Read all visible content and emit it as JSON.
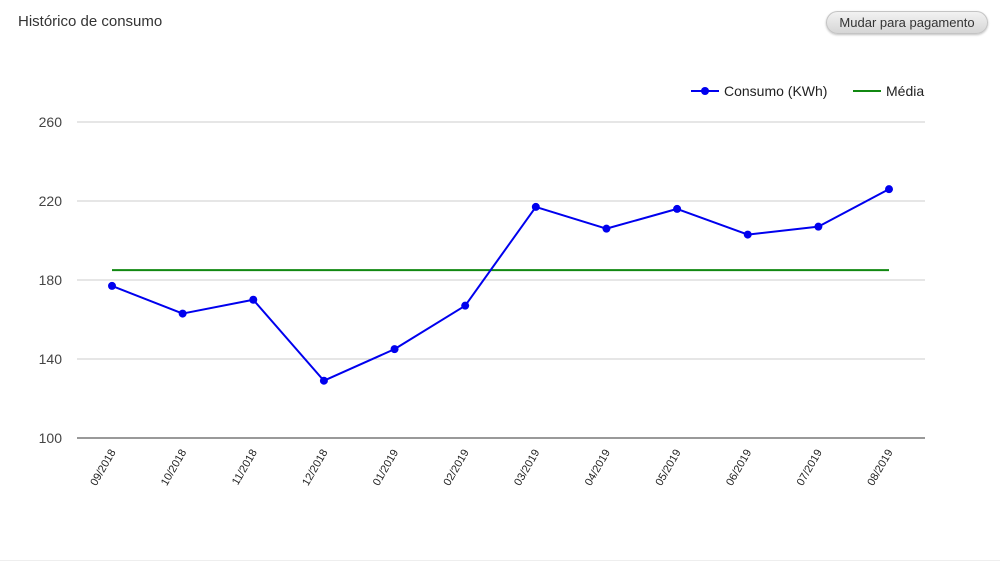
{
  "header": {
    "title": "Histórico de consumo",
    "toggle_label": "Mudar para pagamento"
  },
  "chart_data": {
    "type": "line",
    "title": "",
    "xlabel": "",
    "ylabel": "",
    "ylim": [
      100,
      260
    ],
    "yticks": [
      100,
      140,
      180,
      220,
      260
    ],
    "grid": true,
    "legend_position": "top-right",
    "categories": [
      "09/2018",
      "10/2018",
      "11/2018",
      "12/2018",
      "01/2019",
      "02/2019",
      "03/2019",
      "04/2019",
      "05/2019",
      "06/2019",
      "07/2019",
      "08/2019"
    ],
    "series": [
      {
        "name": "Consumo (KWh)",
        "color": "#0000ee",
        "markers": true,
        "values": [
          177,
          163,
          170,
          129,
          145,
          167,
          217,
          206,
          216,
          203,
          207,
          226
        ]
      },
      {
        "name": "Média",
        "color": "#118811",
        "markers": false,
        "values": [
          185,
          185,
          185,
          185,
          185,
          185,
          185,
          185,
          185,
          185,
          185,
          185
        ]
      }
    ]
  }
}
